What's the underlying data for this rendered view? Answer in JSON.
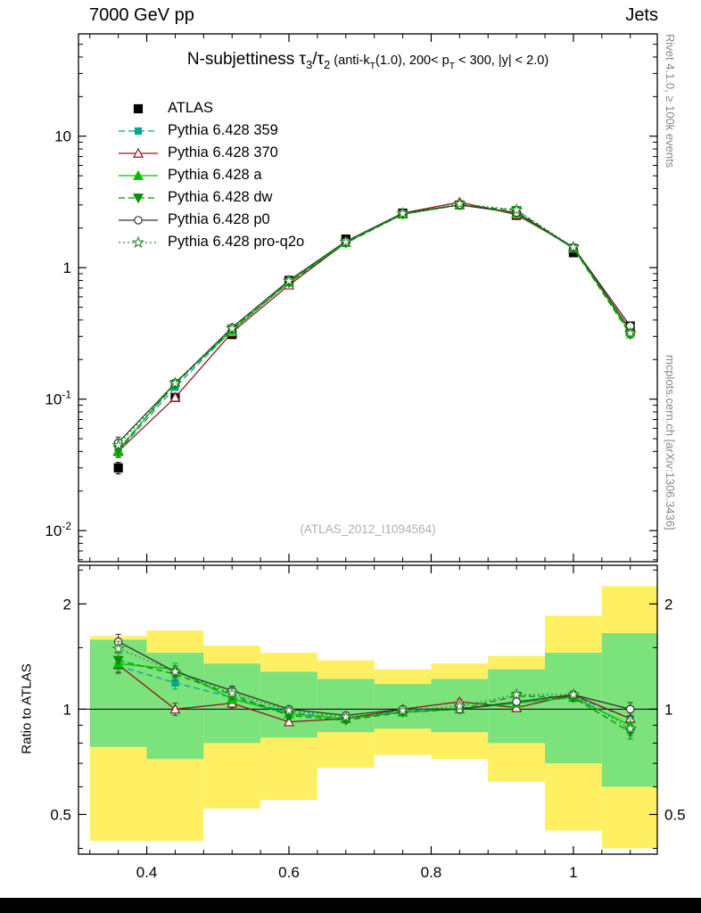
{
  "header": {
    "left": "7000 GeV pp",
    "right": "Jets"
  },
  "title_parts": [
    {
      "t": "N-subjettiness "
    },
    {
      "t": "τ"
    },
    {
      "t": "3",
      "sub": true
    },
    {
      "t": "/"
    },
    {
      "t": "τ"
    },
    {
      "t": "2",
      "sub": true
    },
    {
      "t": " (anti-k",
      "small": true
    },
    {
      "t": "T",
      "small": true,
      "sub": true
    },
    {
      "t": "(1.0), 200< p",
      "small": true
    },
    {
      "t": "T",
      "small": true,
      "sub": true
    },
    {
      "t": " < 300, |y| < 2.0)",
      "small": true
    }
  ],
  "watermark": "(ATLAS_2012_I1094564)",
  "side_text_top": "Rivet 4.1.0, ≥ 100k events",
  "side_text_bottom": "mcplots.cern.ch [arXiv:1306.3436]",
  "ratio_ylabel": "Ratio to ATLAS",
  "chart_data": {
    "type": "line",
    "title": "N-subjettiness tau3/tau2 (anti-kT(1.0), 200< pT < 300, |y| < 2.0)",
    "xlabel": "",
    "ylabel": "",
    "xlim": [
      0.304,
      1.118
    ],
    "xticks": [
      0.4,
      0.6,
      0.8,
      1
    ],
    "xtick_labels": [
      "0.4",
      "0.6",
      "0.8",
      "1"
    ],
    "x": [
      0.36,
      0.44,
      0.52,
      0.6,
      0.68,
      0.76,
      0.84,
      0.92,
      1.0,
      1.08
    ],
    "bin_edges": [
      0.32,
      0.4,
      0.48,
      0.56,
      0.64,
      0.72,
      0.8,
      0.88,
      0.96,
      1.04,
      1.12
    ],
    "err_frac_main": [
      0.1,
      0.055,
      0.04,
      0.03,
      0.025,
      0.02,
      0.02,
      0.025,
      0.035,
      0.055
    ],
    "err_frac_ratio": [
      0.05,
      0.04,
      0.03,
      0.02,
      0.018,
      0.015,
      0.015,
      0.018,
      0.025,
      0.045
    ],
    "main_panel": {
      "ylog": true,
      "ylim": [
        0.0058,
        60
      ],
      "yticks": [
        {
          "v": 10,
          "label": "10"
        },
        {
          "v": 1,
          "label": "1"
        },
        {
          "v": 0.1,
          "label": "10",
          "exp": "-1"
        },
        {
          "v": 0.01,
          "label": "10",
          "exp": "-2"
        }
      ]
    },
    "ratio_panel": {
      "ylog": true,
      "ylim": [
        0.385,
        2.58
      ],
      "ref_line": 1,
      "yticks": [
        {
          "v": 2,
          "label": "2"
        },
        {
          "v": 1,
          "label": "1"
        },
        {
          "v": 0.5,
          "label": "0.5"
        }
      ],
      "bands": [
        {
          "name": "data-uncertainty-total",
          "color": "#ffef62",
          "lo": [
            0.42,
            0.42,
            0.52,
            0.55,
            0.68,
            0.74,
            0.72,
            0.62,
            0.45,
            0.4
          ],
          "hi": [
            1.62,
            1.68,
            1.52,
            1.45,
            1.38,
            1.3,
            1.35,
            1.42,
            1.85,
            2.25
          ]
        },
        {
          "name": "data-uncertainty-stat",
          "color": "#7ce27c",
          "lo": [
            0.78,
            0.72,
            0.8,
            0.83,
            0.86,
            0.88,
            0.86,
            0.8,
            0.7,
            0.6
          ],
          "hi": [
            1.58,
            1.45,
            1.35,
            1.28,
            1.22,
            1.18,
            1.22,
            1.3,
            1.45,
            1.65
          ]
        }
      ]
    },
    "series": [
      {
        "name": "ATLAS",
        "color": "#000000",
        "line": "none",
        "marker": "square",
        "fill": true,
        "values": [
          0.03,
          0.103,
          0.31,
          0.8,
          1.65,
          2.6,
          3.0,
          2.5,
          1.3,
          0.36
        ],
        "ratio": null
      },
      {
        "name": "Pythia 6.428 359",
        "color": "#00a890",
        "line": "dashed",
        "marker": "square",
        "fill": true,
        "values": [
          0.04,
          0.123,
          0.335,
          0.784,
          1.55,
          2.57,
          3.0,
          2.6,
          1.42,
          0.338
        ],
        "ratio": [
          1.33,
          1.19,
          1.08,
          0.98,
          0.94,
          0.99,
          1.0,
          1.04,
          1.09,
          0.94
        ]
      },
      {
        "name": "Pythia 6.428 370",
        "color": "#8b1a1a",
        "line": "solid",
        "marker": "triangle-up",
        "fill": false,
        "values": [
          0.04,
          0.103,
          0.322,
          0.736,
          1.551,
          2.6,
          3.15,
          2.53,
          1.43,
          0.338
        ],
        "ratio": [
          1.34,
          1.0,
          1.04,
          0.92,
          0.94,
          1.0,
          1.05,
          1.01,
          1.1,
          0.94
        ]
      },
      {
        "name": "Pythia 6.428 a",
        "color": "#00c000",
        "line": "solid",
        "marker": "triangle-up",
        "fill": true,
        "values": [
          0.0405,
          0.134,
          0.332,
          0.776,
          1.551,
          2.548,
          3.0,
          2.6,
          1.404,
          0.324
        ],
        "ratio": [
          1.35,
          1.3,
          1.07,
          0.97,
          0.94,
          0.98,
          1.0,
          1.04,
          1.08,
          0.9
        ]
      },
      {
        "name": "Pythia 6.428 dw",
        "color": "#009000",
        "line": "dashed",
        "marker": "triangle-down",
        "fill": true,
        "values": [
          0.0414,
          0.13,
          0.341,
          0.768,
          1.535,
          2.548,
          3.0,
          2.725,
          1.404,
          0.31
        ],
        "ratio": [
          1.38,
          1.26,
          1.1,
          0.96,
          0.93,
          0.98,
          1.0,
          1.09,
          1.08,
          0.86
        ]
      },
      {
        "name": "Pythia 6.428 p0",
        "color": "#333333",
        "line": "solid",
        "marker": "circle",
        "fill": false,
        "values": [
          0.0468,
          0.132,
          0.35,
          0.8,
          1.584,
          2.6,
          3.0,
          2.625,
          1.43,
          0.36
        ],
        "ratio": [
          1.56,
          1.28,
          1.13,
          1.0,
          0.96,
          1.0,
          1.0,
          1.05,
          1.1,
          1.0
        ]
      },
      {
        "name": "Pythia 6.428 pro-q2o",
        "color": "#2e8b2e",
        "line": "dotted",
        "marker": "star",
        "fill": false,
        "values": [
          0.0447,
          0.132,
          0.344,
          0.792,
          1.568,
          2.574,
          3.06,
          2.75,
          1.43,
          0.317
        ],
        "ratio": [
          1.49,
          1.28,
          1.11,
          0.99,
          0.95,
          0.99,
          1.02,
          1.1,
          1.1,
          0.88
        ]
      }
    ]
  }
}
